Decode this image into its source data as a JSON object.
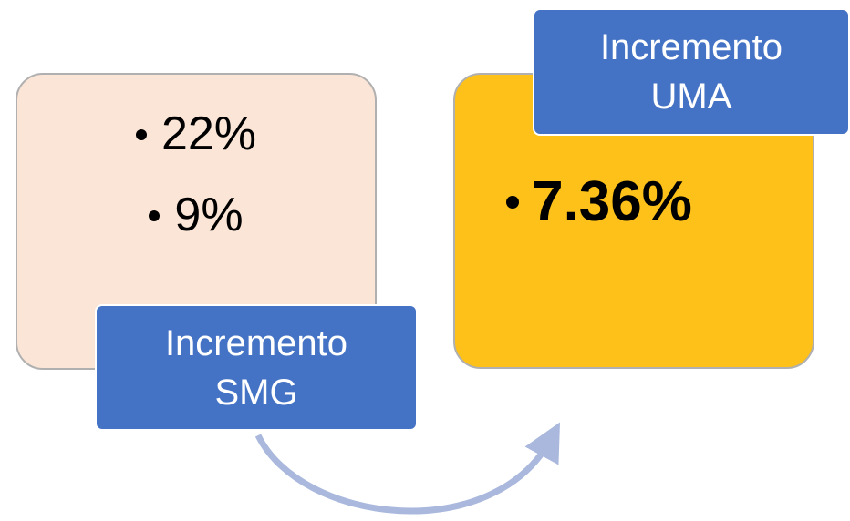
{
  "left": {
    "items": [
      "22%",
      "9%"
    ],
    "label": [
      "Incremento",
      "SMG"
    ]
  },
  "right": {
    "items": [
      "7.36%"
    ],
    "label": [
      "Incremento",
      "UMA"
    ]
  }
}
